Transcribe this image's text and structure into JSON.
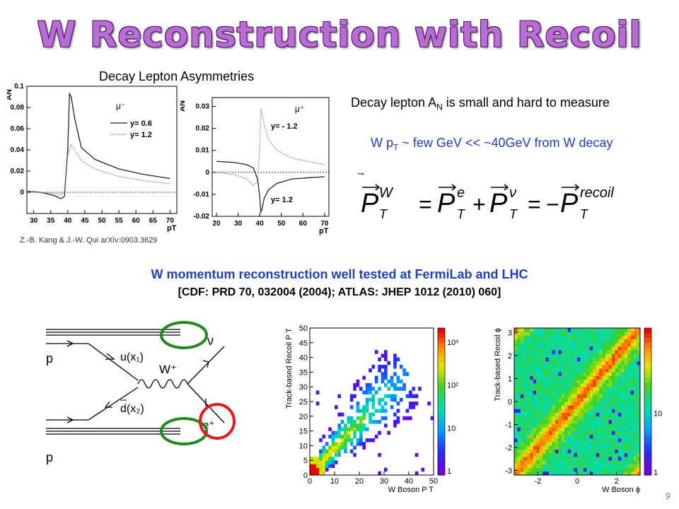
{
  "slide": {
    "title": "W Reconstruction with Recoil",
    "subheading": "Decay Lepton Asymmetries",
    "note_an_pre": "Decay lepton A",
    "note_an_sub": "N",
    "note_an_post": " is small and hard to measure",
    "note_pt_pre": "W p",
    "note_pt_sub": "T",
    "note_pt_post": " ~ few GeV  <<  ~40GeV  from W decay",
    "citation": "Z.-B. Kang & J.-W. Qui arXiv:0903.3629",
    "reconstruction_line": "W momentum reconstruction well tested at FermiLab and LHC",
    "references_line": "[CDF: PRD 70, 032004 (2004); ATLAS:  JHEP 1012 (2010) 060]",
    "page_number": "9"
  },
  "equation": {
    "P": "P",
    "T": "T",
    "sup_W": "W",
    "sup_e": "e",
    "sup_nu": "ν",
    "sup_recoil": "recoil",
    "eq": "=",
    "plus": "+",
    "minus": "−"
  },
  "feynman": {
    "p_top": "p",
    "p_bottom": "p",
    "quark_u": "u(x₁)",
    "quark_dbar": "d(x₂)",
    "boson": "W⁺",
    "neutrino": "ν",
    "positron": "e⁺"
  },
  "chart_data": [
    {
      "type": "line",
      "ylabel": "A_N",
      "xlabel": "p_T",
      "xlim": [
        28,
        72
      ],
      "ylim": [
        -0.02,
        0.1
      ],
      "x_ticks": [
        30,
        35,
        40,
        45,
        50,
        55,
        60,
        65,
        70
      ],
      "y_ticks": [
        0,
        0.02,
        0.04,
        0.06,
        0.08,
        0.1
      ],
      "legend_title": "μ⁻",
      "series": [
        {
          "name": "y= 0.6",
          "style": "solid",
          "x": [
            28,
            32,
            36,
            38,
            39,
            40,
            40.5,
            41,
            42,
            44,
            48,
            55,
            62,
            70
          ],
          "y": [
            0.001,
            0.0,
            -0.003,
            -0.006,
            -0.004,
            0.04,
            0.093,
            0.09,
            0.07,
            0.042,
            0.031,
            0.022,
            0.017,
            0.013
          ]
        },
        {
          "name": "y= 1.2",
          "style": "dotted",
          "x": [
            28,
            32,
            36,
            38,
            39,
            40,
            41,
            42,
            44,
            48,
            55,
            62,
            70
          ],
          "y": [
            0.001,
            0.0,
            -0.001,
            -0.002,
            0.0,
            0.035,
            0.045,
            0.04,
            0.03,
            0.022,
            0.015,
            0.011,
            0.008
          ]
        }
      ]
    },
    {
      "type": "line",
      "ylabel": "A_N",
      "xlabel": "p_T",
      "xlim": [
        18,
        72
      ],
      "ylim": [
        -0.02,
        0.034
      ],
      "x_ticks": [
        20,
        30,
        40,
        50,
        60,
        70
      ],
      "y_ticks": [
        -0.02,
        -0.01,
        0,
        0.01,
        0.02,
        0.03
      ],
      "legend_title": "μ⁺",
      "series": [
        {
          "name": "y= - 1.2",
          "style": "dotted",
          "x": [
            20,
            28,
            34,
            37,
            39,
            40,
            40.5,
            41,
            42,
            44,
            48,
            55,
            62,
            70
          ],
          "y": [
            0.0,
            -0.001,
            -0.003,
            -0.006,
            -0.004,
            0.01,
            0.029,
            0.027,
            0.022,
            0.015,
            0.01,
            0.0065,
            0.005,
            0.0035
          ]
        },
        {
          "name": "y= 1.2",
          "style": "solid",
          "x": [
            20,
            28,
            34,
            37,
            39,
            40,
            40.5,
            41,
            42,
            44,
            48,
            55,
            62,
            70
          ],
          "y": [
            0.005,
            0.0045,
            0.0035,
            0.002,
            -0.003,
            -0.011,
            -0.018,
            -0.017,
            -0.012,
            -0.008,
            -0.005,
            -0.003,
            -0.0025,
            -0.002
          ]
        }
      ]
    },
    {
      "type": "heatmap",
      "xlabel": "W Boson P_T",
      "ylabel": "Track-based Recoil P_T",
      "xlim": [
        0,
        50
      ],
      "ylim": [
        0,
        50
      ],
      "x_ticks": [
        0,
        10,
        20,
        30,
        40,
        50
      ],
      "y_ticks": [
        0,
        5,
        10,
        15,
        20,
        25,
        30,
        35,
        40,
        45,
        50
      ],
      "colorbar_scale": "log",
      "colorbar_ticks": [
        "10³",
        "10²",
        "10",
        "1"
      ]
    },
    {
      "type": "heatmap",
      "xlabel": "W Boson ϕ",
      "ylabel": "Track-based Recoil ϕ",
      "xlim": [
        -3.2,
        3.2
      ],
      "ylim": [
        -3.2,
        3.2
      ],
      "x_ticks": [
        -2,
        0,
        2
      ],
      "y_ticks": [
        -3,
        -2,
        -1,
        0,
        1,
        2,
        3
      ],
      "colorbar_scale": "log",
      "colorbar_ticks": [
        "10",
        "1"
      ]
    }
  ]
}
